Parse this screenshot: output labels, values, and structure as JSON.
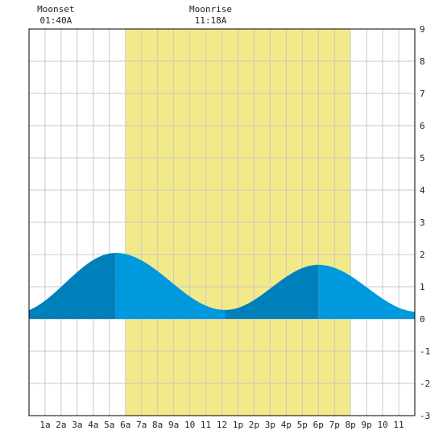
{
  "chart_data": {
    "type": "area",
    "title": "",
    "xlabel": "",
    "ylabel": "",
    "xlim": [
      0,
      24
    ],
    "ylim": [
      -3,
      9
    ],
    "y_ticks": [
      9,
      8,
      7,
      6,
      5,
      4,
      3,
      2,
      1,
      0,
      -1,
      -2,
      -3
    ],
    "x_ticks": [
      {
        "x": 1,
        "label": "1a"
      },
      {
        "x": 2,
        "label": "2a"
      },
      {
        "x": 3,
        "label": "3a"
      },
      {
        "x": 4,
        "label": "4a"
      },
      {
        "x": 5,
        "label": "5a"
      },
      {
        "x": 6,
        "label": "6a"
      },
      {
        "x": 7,
        "label": "7a"
      },
      {
        "x": 8,
        "label": "8a"
      },
      {
        "x": 9,
        "label": "9a"
      },
      {
        "x": 10,
        "label": "10"
      },
      {
        "x": 11,
        "label": "11"
      },
      {
        "x": 12,
        "label": "12"
      },
      {
        "x": 13,
        "label": "1p"
      },
      {
        "x": 14,
        "label": "2p"
      },
      {
        "x": 15,
        "label": "3p"
      },
      {
        "x": 16,
        "label": "4p"
      },
      {
        "x": 17,
        "label": "5p"
      },
      {
        "x": 18,
        "label": "6p"
      },
      {
        "x": 19,
        "label": "7p"
      },
      {
        "x": 20,
        "label": "8p"
      },
      {
        "x": 21,
        "label": "9p"
      },
      {
        "x": 22,
        "label": "10"
      },
      {
        "x": 23,
        "label": "11"
      }
    ],
    "grid": true,
    "daylight": [
      6.0,
      20.0
    ],
    "tide": {
      "start_level": 0.25,
      "extremes": [
        {
          "hour": 5.4,
          "level": 2.05,
          "kind": "high"
        },
        {
          "hour": 12.2,
          "level": 0.28,
          "kind": "low"
        },
        {
          "hour": 18.0,
          "level": 1.68,
          "kind": "high"
        }
      ],
      "end_level": 0.35
    },
    "moon_events": [
      {
        "label": "Moonset",
        "time": "01:40A",
        "hour": 1.67
      },
      {
        "label": "Moonrise",
        "time": "11:18A",
        "hour": 11.3
      }
    ],
    "colors": {
      "daylight": "#f2ea8a",
      "tide_day": "#0099dd",
      "tide_night": "#0080bb",
      "grid": "#c8c8c8",
      "frame": "#000000",
      "background": "#ffffff"
    }
  }
}
